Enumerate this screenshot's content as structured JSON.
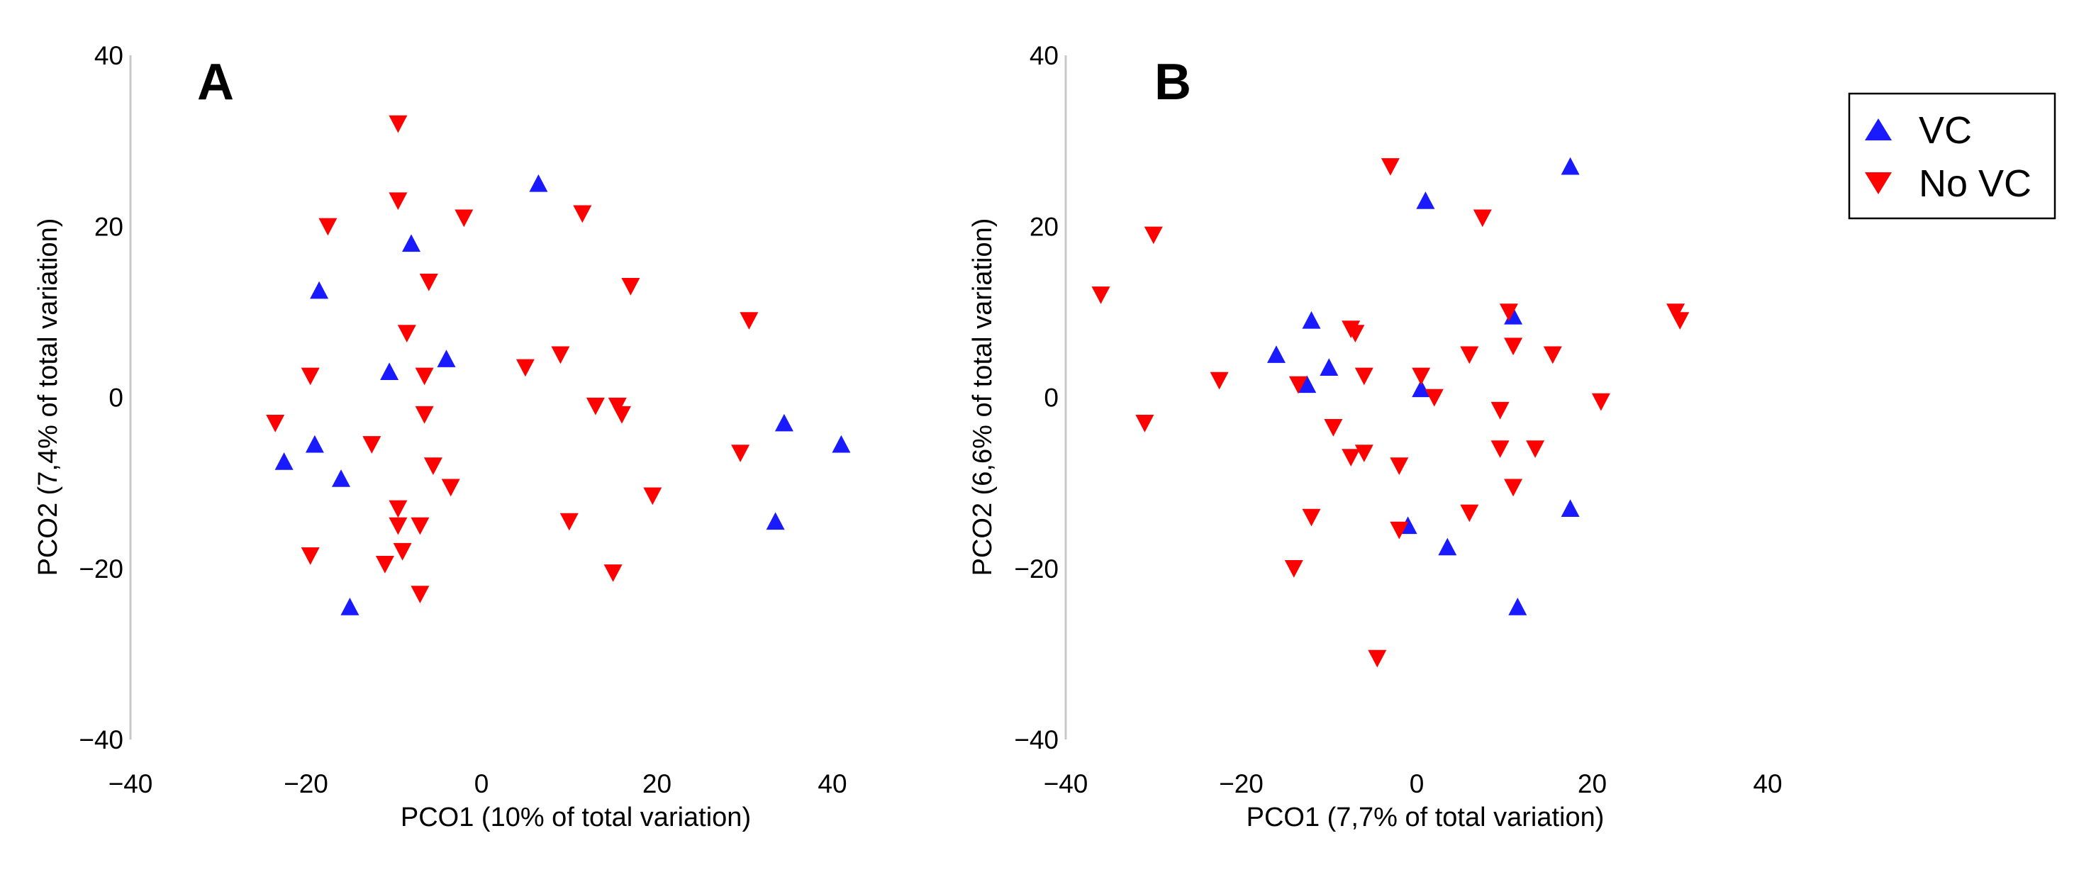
{
  "legend": {
    "entries": [
      {
        "label": "VC",
        "marker": "triangle-up-icon",
        "color": "#1a1aff"
      },
      {
        "label": "No VC",
        "marker": "triangle-down-icon",
        "color": "#ff0000"
      }
    ]
  },
  "chart_data": [
    {
      "type": "scatter",
      "panel_label": "A",
      "xlabel": "PCO1 (10% of total variation)",
      "ylabel": "PCO2 (7,4% of total variation)",
      "xlim": [
        -40,
        40
      ],
      "ylim": [
        -40,
        40
      ],
      "xticks": [
        -40,
        -20,
        0,
        20,
        40
      ],
      "yticks": [
        -40,
        -20,
        0,
        20,
        40
      ],
      "xtick_labels": [
        "−40",
        "−20",
        "0",
        "20",
        "40"
      ],
      "ytick_labels": [
        "−40",
        "−20",
        "0",
        "20",
        "40"
      ],
      "series": [
        {
          "name": "VC",
          "marker": "triangle-up",
          "color": "#1a1aff",
          "points": [
            [
              -22.5,
              -7.5
            ],
            [
              -19,
              -5.5
            ],
            [
              -18.5,
              12.5
            ],
            [
              -16,
              -9.5
            ],
            [
              -15,
              -24.5
            ],
            [
              -10.5,
              3
            ],
            [
              -8,
              18
            ],
            [
              -4,
              4.5
            ],
            [
              6.5,
              25
            ],
            [
              33.5,
              -14.5
            ],
            [
              34.5,
              -3
            ],
            [
              41,
              -5.5
            ]
          ]
        },
        {
          "name": "No VC",
          "marker": "triangle-down",
          "color": "#ff0000",
          "points": [
            [
              -9.5,
              32
            ],
            [
              -9.5,
              23
            ],
            [
              -17.5,
              20
            ],
            [
              -2,
              21
            ],
            [
              -6,
              13.5
            ],
            [
              -8.5,
              7.5
            ],
            [
              -19.5,
              2.5
            ],
            [
              -6.5,
              2.5
            ],
            [
              -23.5,
              -3
            ],
            [
              -12.5,
              -5.5
            ],
            [
              -6.5,
              -2
            ],
            [
              -5.5,
              -8
            ],
            [
              -3.5,
              -10.5
            ],
            [
              -19.5,
              -18.5
            ],
            [
              -9.5,
              -13
            ],
            [
              -9.5,
              -15
            ],
            [
              -7,
              -15
            ],
            [
              -9,
              -18
            ],
            [
              -11,
              -19.5
            ],
            [
              -7,
              -23
            ],
            [
              11.5,
              21.5
            ],
            [
              17,
              13
            ],
            [
              5,
              3.5
            ],
            [
              9,
              5
            ],
            [
              13,
              -1
            ],
            [
              15.5,
              -1
            ],
            [
              16,
              -2
            ],
            [
              19.5,
              -11.5
            ],
            [
              10,
              -14.5
            ],
            [
              15,
              -20.5
            ],
            [
              29.5,
              -6.5
            ],
            [
              30.5,
              9
            ]
          ]
        }
      ]
    },
    {
      "type": "scatter",
      "panel_label": "B",
      "xlabel": "PCO1 (7,7% of total variation)",
      "ylabel": "PCO2 (6,6% of total variation)",
      "xlim": [
        -40,
        40
      ],
      "ylim": [
        -40,
        40
      ],
      "xticks": [
        -40,
        -20,
        0,
        20,
        40
      ],
      "yticks": [
        -40,
        -20,
        0,
        20,
        40
      ],
      "xtick_labels": [
        "−40",
        "−20",
        "0",
        "20",
        "40"
      ],
      "ytick_labels": [
        "−40",
        "−20",
        "0",
        "20",
        "40"
      ],
      "series": [
        {
          "name": "VC",
          "marker": "triangle-up",
          "color": "#1a1aff",
          "points": [
            [
              -16,
              5
            ],
            [
              -12,
              9
            ],
            [
              -12.5,
              1.5
            ],
            [
              -10,
              3.5
            ],
            [
              0.5,
              1
            ],
            [
              1,
              23
            ],
            [
              11,
              9.5
            ],
            [
              17.5,
              27
            ],
            [
              17.5,
              -13
            ],
            [
              -1,
              -15
            ],
            [
              3.5,
              -17.5
            ],
            [
              11.5,
              -24.5
            ]
          ]
        },
        {
          "name": "No VC",
          "marker": "triangle-down",
          "color": "#ff0000",
          "points": [
            [
              -36,
              12
            ],
            [
              -30,
              19
            ],
            [
              -22.5,
              2
            ],
            [
              -31,
              -3
            ],
            [
              -3,
              27
            ],
            [
              7.5,
              21
            ],
            [
              -7.5,
              8
            ],
            [
              -7,
              7.5
            ],
            [
              -13.5,
              1.5
            ],
            [
              -6,
              2.5
            ],
            [
              0.5,
              2.5
            ],
            [
              2,
              0
            ],
            [
              6,
              5
            ],
            [
              11,
              6
            ],
            [
              10.5,
              10
            ],
            [
              15.5,
              5
            ],
            [
              21,
              -0.5
            ],
            [
              29.5,
              10
            ],
            [
              30,
              9
            ],
            [
              -9.5,
              -3.5
            ],
            [
              -6,
              -6.5
            ],
            [
              -7.5,
              -7
            ],
            [
              -2,
              -8
            ],
            [
              9.5,
              -1.5
            ],
            [
              9.5,
              -6
            ],
            [
              13.5,
              -6
            ],
            [
              6,
              -13.5
            ],
            [
              11,
              -10.5
            ],
            [
              -12,
              -14
            ],
            [
              -14,
              -20
            ],
            [
              -2,
              -15.5
            ],
            [
              -4.5,
              -30.5
            ]
          ]
        }
      ]
    }
  ]
}
